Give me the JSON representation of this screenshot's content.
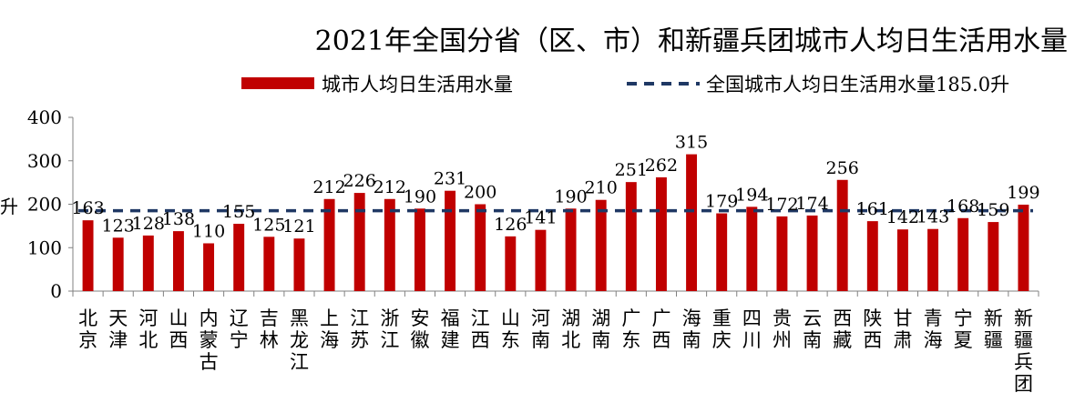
{
  "chart_data": {
    "type": "bar",
    "title": "2021年全国分省（区、市）和新疆兵团城市人均日生活用水量",
    "ylabel": "升",
    "ylim": [
      0,
      400
    ],
    "yticks": [
      0,
      100,
      200,
      300,
      400
    ],
    "grid": false,
    "legend_position": "top",
    "categories": [
      "北京",
      "天津",
      "河北",
      "山西",
      "内蒙古",
      "辽宁",
      "吉林",
      "黑龙江",
      "上海",
      "江苏",
      "浙江",
      "安徽",
      "福建",
      "江西",
      "山东",
      "河南",
      "湖北",
      "湖南",
      "广东",
      "广西",
      "海南",
      "重庆",
      "四川",
      "贵州",
      "云南",
      "西藏",
      "陕西",
      "甘肃",
      "青海",
      "宁夏",
      "新疆",
      "新疆兵团"
    ],
    "series": [
      {
        "name": "城市人均日生活用水量",
        "color": "#c00000",
        "values": [
          163,
          123,
          128,
          138,
          110,
          155,
          125,
          121,
          212,
          226,
          212,
          190,
          231,
          200,
          126,
          141,
          190,
          210,
          251,
          262,
          315,
          179,
          194,
          172,
          174,
          256,
          161,
          142,
          143,
          168,
          159,
          199
        ]
      }
    ],
    "reference_line": {
      "name": "全国城市人均日生活用水量185.0升",
      "value": 185.0,
      "color": "#1f3864",
      "style": "dashed"
    }
  }
}
